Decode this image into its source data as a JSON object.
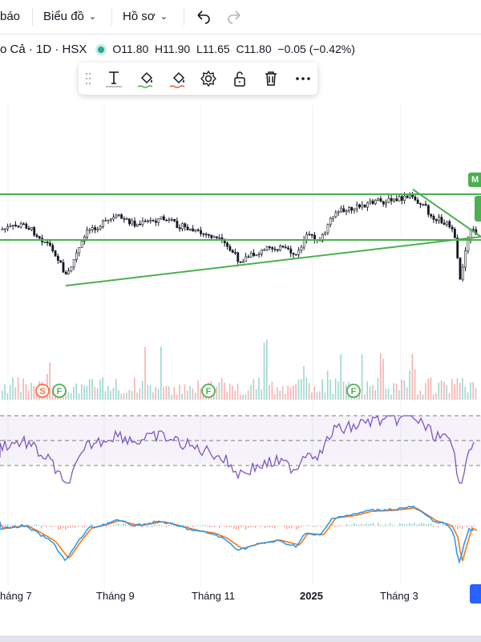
{
  "topbar": {
    "alerts_label": "báo",
    "chart_menu_label": "Biểu đồ",
    "profile_menu_label": "Hồ sơ",
    "undo_icon": "undo-icon",
    "redo_icon": "redo-icon"
  },
  "symbol": {
    "name": "o Cả · 1D · HSX",
    "status_color": "#22ab94",
    "open": "O11.80",
    "high": "H11.90",
    "low": "L11.65",
    "close": "C11.80",
    "change": "−0.05 (−0.42%)"
  },
  "drawing_toolbar": {
    "tools": [
      "text-tool-icon",
      "line-color-icon",
      "fill-color-icon",
      "settings-icon",
      "lock-icon",
      "delete-icon",
      "more-icon"
    ]
  },
  "chart": {
    "line_color": "#4caf50",
    "up_color": "#26a69a",
    "down_color": "#ef5350",
    "rsi_color": "#7e57c2",
    "macd_color": "#2196f3",
    "signal_color": "#ff6d00",
    "tag_text": "M"
  },
  "markers": [
    {
      "label": "S",
      "color": "#ff7043"
    },
    {
      "label": "F",
      "color": "#4caf50"
    },
    {
      "label": "F",
      "color": "#4caf50"
    },
    {
      "label": "F",
      "color": "#4caf50"
    }
  ],
  "time_axis": {
    "labels": [
      "háng 7",
      "Tháng 9",
      "Tháng 11",
      "2025",
      "Tháng 3"
    ]
  }
}
